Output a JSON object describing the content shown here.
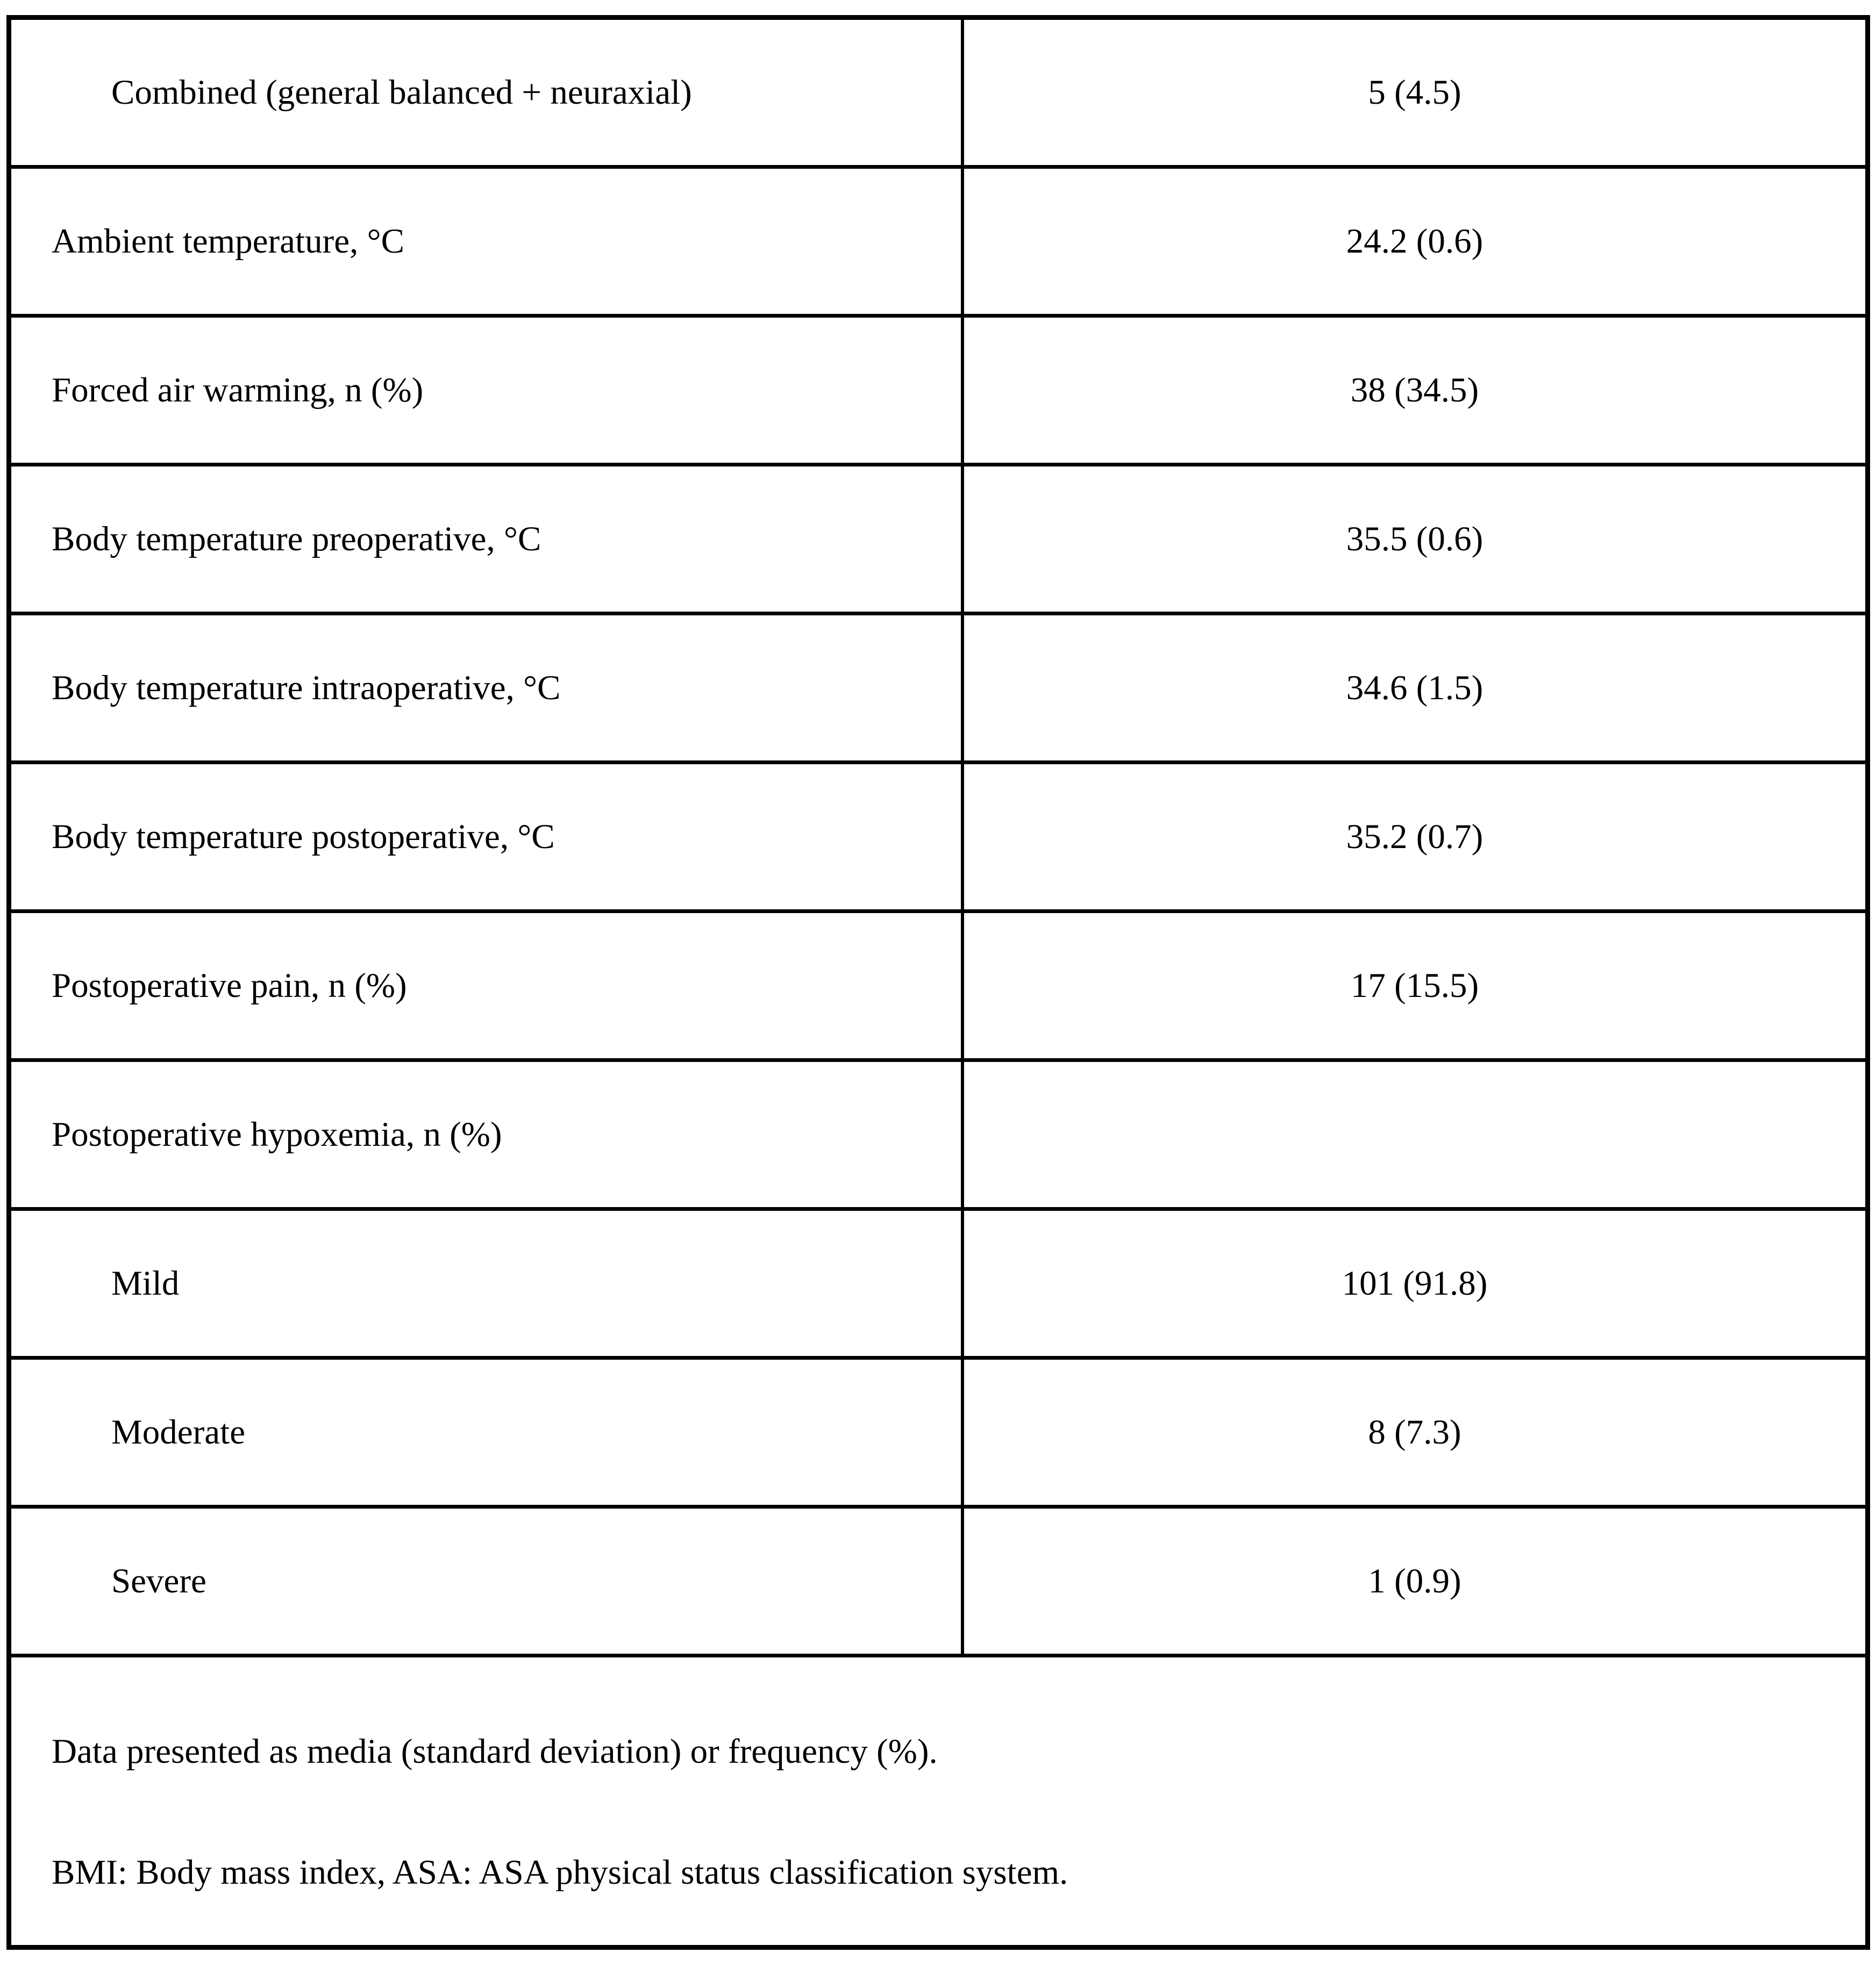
{
  "table": {
    "rows": [
      {
        "label": "Combined (general balanced + neuraxial)",
        "value": "5 (4.5)",
        "indent": true
      },
      {
        "label": "Ambient temperature, °C",
        "value": "24.2 (0.6)",
        "indent": false
      },
      {
        "label": "Forced air warming, n (%)",
        "value": "38 (34.5)",
        "indent": false
      },
      {
        "label": "Body temperature preoperative, °C",
        "value": "35.5 (0.6)",
        "indent": false
      },
      {
        "label": "Body temperature intraoperative, °C",
        "value": "34.6 (1.5)",
        "indent": false
      },
      {
        "label": "Body temperature postoperative, °C",
        "value": "35.2 (0.7)",
        "indent": false
      },
      {
        "label": "Postoperative pain, n (%)",
        "value": "17 (15.5)",
        "indent": false
      },
      {
        "label": "Postoperative hypoxemia, n (%)",
        "value": "",
        "indent": false
      },
      {
        "label": "Mild",
        "value": "101 (91.8)",
        "indent": true
      },
      {
        "label": "Moderate",
        "value": "8 (7.3)",
        "indent": true
      },
      {
        "label": "Severe",
        "value": "1 (0.9)",
        "indent": true
      }
    ],
    "footnotes": [
      "Data presented as media (standard deviation) or frequency (%).",
      "BMI: Body mass index, ASA: ASA physical status classification system."
    ]
  },
  "colors": {
    "border": "#000000",
    "background": "#ffffff",
    "text": "#000000"
  }
}
